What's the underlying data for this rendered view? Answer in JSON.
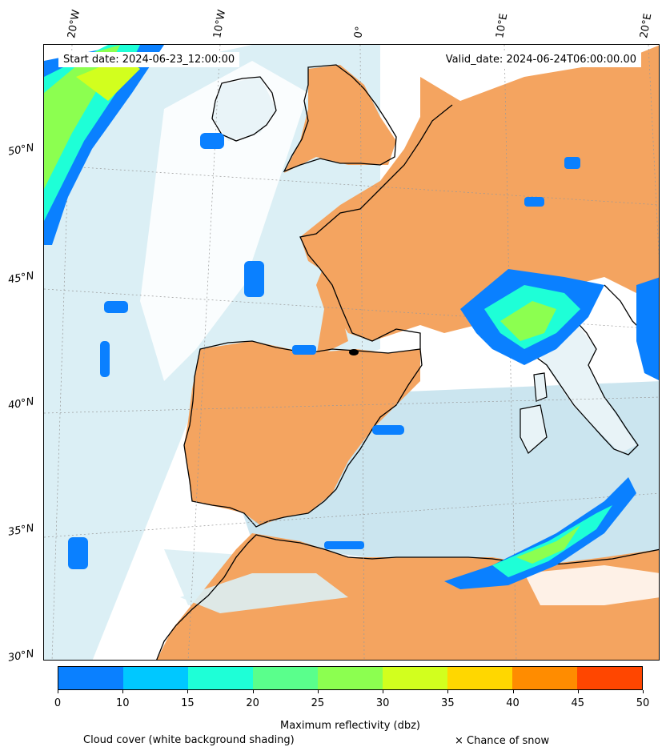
{
  "header": {
    "start_date": "Start date: 2024-06-23_12:00:00",
    "valid_date": "Valid_date: 2024-06-24T06:00:00.00"
  },
  "lon_labels": [
    "20°W",
    "10°W",
    "0°",
    "10°E",
    "20°E"
  ],
  "lat_labels": [
    "50°N",
    "45°N",
    "40°N",
    "35°N",
    "30°N"
  ],
  "colorbar": {
    "ticks": [
      "0",
      "10",
      "15",
      "20",
      "25",
      "30",
      "35",
      "40",
      "45",
      "50"
    ],
    "colors": [
      "#0a80ff",
      "#00c8ff",
      "#1effd7",
      "#5aff8c",
      "#8cff50",
      "#d2ff1e",
      "#ffd700",
      "#ff8c00",
      "#ff4600"
    ],
    "label": "Maximum reflectivity (dbz)"
  },
  "legend": {
    "cloud_cover": "Cloud cover (white background shading)",
    "snow": "× Chance of snow"
  },
  "palette": {
    "land_dry": "#f4a460",
    "cloud_light": "#add8e6",
    "cloud_white": "#ffffff",
    "coast": "#000000"
  }
}
